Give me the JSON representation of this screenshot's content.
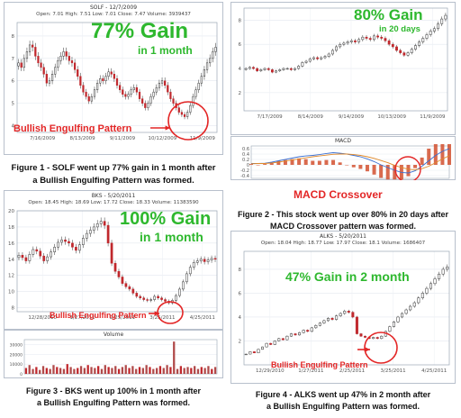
{
  "figure1": {
    "title": "SOLF - 12/7/2009",
    "info": "Open: 7.01 High: 7.51 Low: 7.01 Close: 7.47 Volume: 3939437",
    "gain": "77% Gain",
    "gain_sub": "in 1 month",
    "pattern_label": "Bullish Engulfing Pattern",
    "caption_line1": "Figure 1 - SOLF went up 77% gain in 1 month after",
    "caption_line2": "a Bullish Engulfing Pattern was formed."
  },
  "figure2": {
    "gain": "80% Gain",
    "gain_sub": "in 20 days",
    "macd_title": "MACD",
    "macd_label": "MACD Crossover",
    "caption_line1": "Figure 2 - This stock went up over 80% in 20 days after",
    "caption_line2": "MACD Crossover pattern was formed."
  },
  "figure3": {
    "title": "BKS - 5/20/2011",
    "info": "Open: 18.45 High: 18.69 Low: 17.72 Close: 18.33 Volume: 11383590",
    "gain": "100% Gain",
    "gain_sub": "in 1 month",
    "pattern_label": "Bullish Engulfing Pattern",
    "volume_title": "Volume",
    "caption_line1": "Figure 3 - BKS went up 100% in 1 month after",
    "caption_line2": "a Bullish Engulfing Pattern was formed."
  },
  "figure4": {
    "title": "ALKS - 5/20/2011",
    "info": "Open: 18.04 High: 18.77 Low: 17.97 Close: 18.1 Volume: 1686407",
    "gain": "47% Gain in 2 month",
    "pattern_label": "Bullish Engulfing Pattern",
    "caption_line1": "Figure 4 - ALKS went up 47% in 2 month after",
    "caption_line2": "a Bullish Engulfing Pattern was formed."
  },
  "colors": {
    "up": "#ffffff",
    "down": "#c0282d",
    "gain": "#2eb82e",
    "pattern": "#e32626",
    "macd_line": "#3a6fd1",
    "signal_line": "#e08a2a"
  },
  "chart_data": [
    {
      "type": "candlestick",
      "ticker": "SOLF",
      "title": "SOLF - 12/7/2009",
      "x": [
        "7/16/2009",
        "8/13/2009",
        "9/11/2009",
        "10/12/2009",
        "11/9/2009"
      ],
      "y_ticks": [
        4,
        5,
        6,
        7,
        8
      ],
      "ylim": [
        3.7,
        8.6
      ],
      "closes": [
        6.8,
        6.6,
        7.0,
        7.3,
        7.6,
        7.5,
        7.1,
        6.8,
        6.6,
        6.3,
        5.9,
        6.0,
        6.3,
        6.6,
        6.9,
        7.1,
        7.3,
        7.1,
        6.9,
        6.8,
        6.5,
        6.2,
        5.8,
        5.5,
        5.3,
        5.1,
        5.3,
        5.6,
        5.9,
        6.1,
        6.0,
        6.2,
        6.4,
        6.3,
        6.1,
        5.8,
        5.6,
        5.4,
        5.3,
        5.4,
        5.6,
        5.7,
        5.5,
        5.2,
        5.0,
        4.8,
        5.0,
        5.3,
        5.5,
        5.7,
        5.9,
        6.0,
        5.8,
        5.5,
        5.2,
        5.0,
        4.8,
        4.6,
        4.5,
        4.4,
        4.6,
        4.9,
        5.3,
        5.6,
        5.9,
        6.2,
        6.5,
        6.8,
        7.0,
        7.3,
        7.5
      ]
    },
    {
      "type": "candlestick",
      "title": "",
      "x": [
        "7/17/2009",
        "8/14/2009",
        "9/14/2009",
        "10/13/2009",
        "11/9/2009"
      ],
      "y_ticks": [
        2,
        4,
        6,
        8
      ],
      "ylim": [
        0.5,
        9
      ],
      "closes": [
        4.0,
        4.1,
        4.0,
        3.8,
        3.9,
        4.0,
        3.9,
        3.7,
        3.8,
        3.9,
        4.0,
        4.0,
        3.9,
        4.0,
        4.2,
        4.5,
        4.6,
        4.8,
        4.9,
        4.8,
        4.9,
        5.0,
        5.2,
        5.5,
        5.8,
        6.0,
        6.1,
        6.2,
        6.3,
        6.2,
        6.4,
        6.6,
        6.5,
        6.4,
        6.7,
        6.6,
        6.5,
        6.3,
        6.0,
        5.8,
        5.5,
        5.3,
        5.1,
        5.3,
        5.6,
        5.9,
        6.2,
        6.5,
        6.8,
        7.1,
        7.3,
        7.7,
        8.1,
        8.4
      ]
    },
    {
      "type": "line",
      "title": "MACD",
      "y_ticks": [
        0.6,
        0.4,
        0.2,
        0,
        -0.2,
        -0.4
      ],
      "ylim": [
        -0.5,
        0.7
      ],
      "series": [
        {
          "values": [
            0.05,
            0.05,
            0.06,
            0.1,
            0.15,
            0.2,
            0.25,
            0.3,
            0.33,
            0.35,
            0.38,
            0.42,
            0.45,
            0.43,
            0.4,
            0.35,
            0.3,
            0.22,
            0.12,
            0.0,
            -0.1,
            -0.2,
            -0.28,
            -0.3,
            -0.22,
            -0.05,
            0.15,
            0.35,
            0.5,
            0.6
          ]
        },
        {
          "values": [
            0.04,
            0.05,
            0.05,
            0.07,
            0.1,
            0.14,
            0.18,
            0.22,
            0.26,
            0.3,
            0.33,
            0.36,
            0.39,
            0.4,
            0.4,
            0.38,
            0.35,
            0.3,
            0.24,
            0.16,
            0.08,
            -0.02,
            -0.1,
            -0.16,
            -0.18,
            -0.14,
            -0.05,
            0.08,
            0.22,
            0.34
          ]
        }
      ]
    },
    {
      "type": "candlestick",
      "ticker": "BKS",
      "title": "BKS - 5/20/2011",
      "x": [
        "12/28/2010",
        "1/27/2011",
        "2/25/2011",
        "3/25/2011",
        "4/25/2011"
      ],
      "y_ticks": [
        8,
        10,
        12,
        14,
        16,
        18,
        20
      ],
      "ylim": [
        7.5,
        20
      ],
      "closes": [
        14.5,
        14.2,
        13.8,
        14.6,
        15.2,
        15.0,
        14.4,
        13.8,
        14.3,
        14.9,
        15.5,
        16.1,
        16.4,
        16.2,
        16.0,
        15.5,
        15.1,
        15.8,
        16.6,
        17.2,
        17.6,
        18.0,
        18.4,
        18.7,
        18.2,
        16.0,
        13.5,
        12.5,
        11.8,
        11.0,
        10.6,
        10.3,
        9.8,
        9.4,
        9.2,
        9.0,
        8.9,
        9.0,
        9.4,
        9.2,
        9.0,
        8.8,
        8.6,
        8.9,
        9.5,
        10.3,
        11.2,
        12.2,
        13.0,
        13.6,
        13.8,
        14.0,
        13.7,
        13.9,
        14.1,
        14.0
      ]
    },
    {
      "type": "bar",
      "title": "Volume",
      "y_ticks": [
        0,
        10000,
        20000,
        30000
      ],
      "ylim": [
        0,
        35000
      ],
      "values": [
        6000,
        9000,
        5000,
        7000,
        4000,
        8000,
        6000,
        5000,
        9000,
        7000,
        6000,
        5000,
        10000,
        7000,
        5000,
        6000,
        8000,
        6000,
        9000,
        7000,
        6000,
        8000,
        5000,
        9000,
        7000,
        6000,
        8000,
        5000,
        7000,
        9000,
        6000,
        8000,
        5000,
        7000,
        6000,
        9000,
        7000,
        5000,
        6000,
        8000,
        6000,
        9000,
        7000,
        33000,
        5000,
        8000,
        6000,
        7000,
        6000,
        8000,
        5000,
        7000,
        6000,
        8000,
        5000,
        7000
      ]
    },
    {
      "type": "candlestick",
      "ticker": "ALKS",
      "title": "ALKS - 5/20/2011",
      "x": [
        "12/29/2010",
        "1/27/2011",
        "2/25/2011",
        "3/25/2011",
        "4/25/2011"
      ],
      "y_ticks": [
        2,
        4,
        6,
        8
      ],
      "ylim": [
        0,
        9.5
      ],
      "closes": [
        0.9,
        1.1,
        1.0,
        1.3,
        1.5,
        1.8,
        1.7,
        2.0,
        2.2,
        2.1,
        2.4,
        2.6,
        2.5,
        2.7,
        2.9,
        2.8,
        3.1,
        3.3,
        3.5,
        3.7,
        3.9,
        3.8,
        4.1,
        4.3,
        4.5,
        4.4,
        4.0,
        2.6,
        2.4,
        2.3,
        2.2,
        2.3,
        2.2,
        2.4,
        2.8,
        3.2,
        3.6,
        4.0,
        4.3,
        4.6,
        4.9,
        5.2,
        5.6,
        6.0,
        6.4,
        6.8,
        7.2,
        7.6,
        8.0,
        8.2
      ]
    }
  ]
}
